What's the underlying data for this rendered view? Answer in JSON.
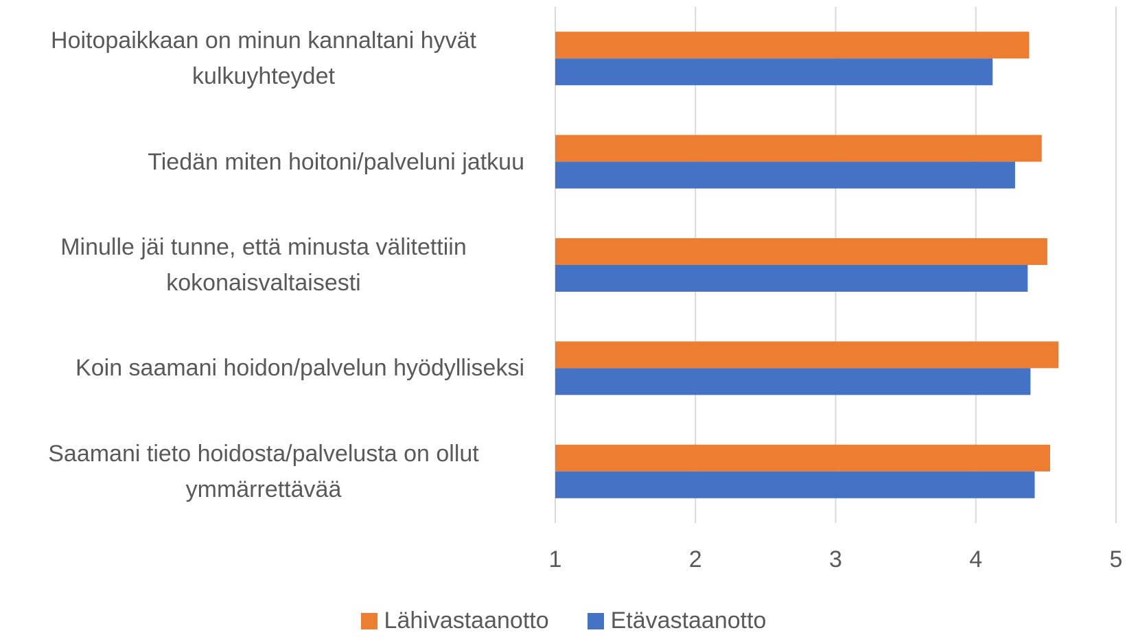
{
  "chart_data": {
    "type": "barh",
    "categories": [
      "Hoitopaikkaan on minun kannaltani hyvät kulkuyhteydet",
      "Tiedän miten hoitoni/palveluni jatkuu",
      "Minulle jäi tunne, että minusta välitettiin kokonaisvaltaisesti",
      "Koin saamani hoidon/palvelun hyödylliseksi",
      "Saamani tieto hoidosta/palvelusta on ollut ymmärrettävää"
    ],
    "series": [
      {
        "name": "Lähivastaanotto",
        "color": "#ed7d31",
        "values": [
          4.38,
          4.47,
          4.51,
          4.59,
          4.53
        ]
      },
      {
        "name": "Etävastaanotto",
        "color": "#4472c4",
        "values": [
          4.12,
          4.28,
          4.37,
          4.39,
          4.42
        ]
      }
    ],
    "xlim": [
      1,
      5
    ],
    "xticks": [
      1,
      2,
      3,
      4,
      5
    ],
    "grid": true,
    "legend": "bottom"
  }
}
